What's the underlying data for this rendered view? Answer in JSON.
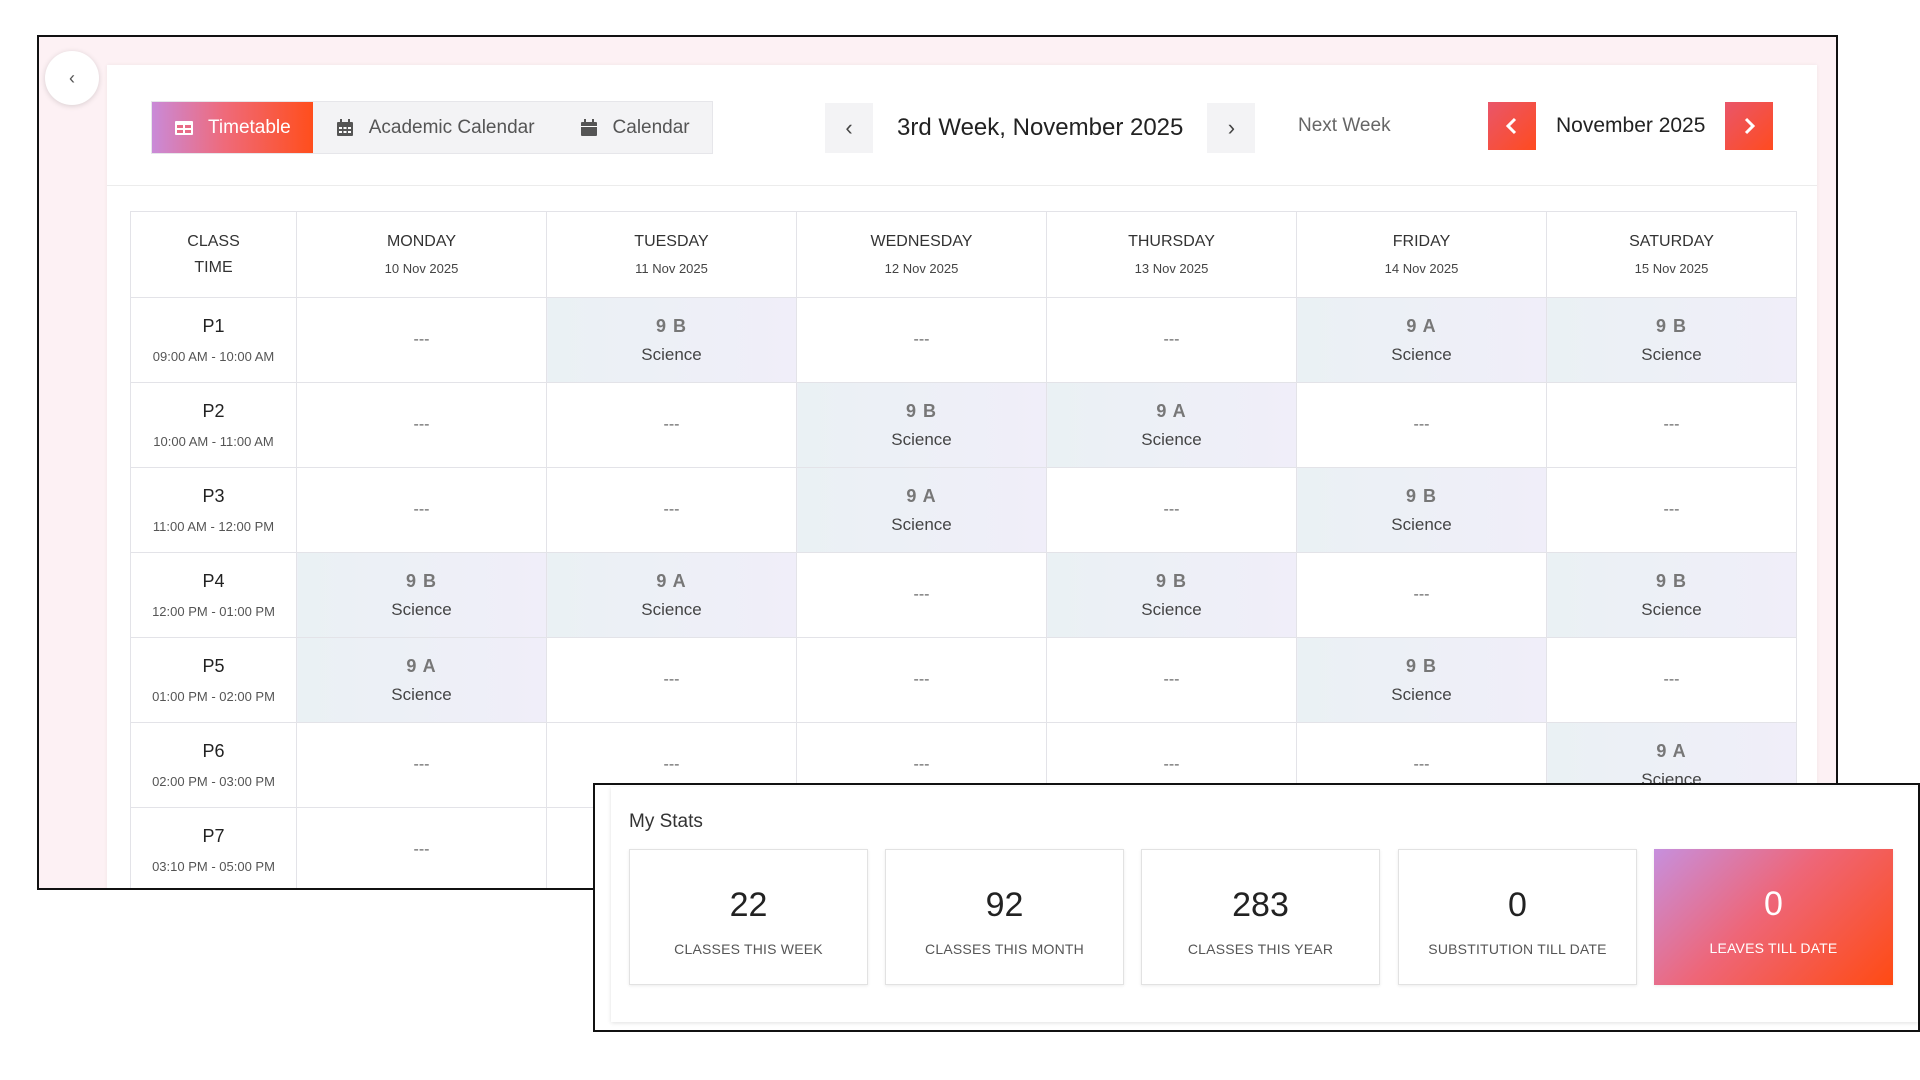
{
  "tabs": [
    {
      "label": "Timetable",
      "icon": "table-icon"
    },
    {
      "label": "Academic Calendar",
      "icon": "calendar-icon"
    },
    {
      "label": "Calendar",
      "icon": "calendar-icon"
    }
  ],
  "week_nav": {
    "label": "3rd Week, November 2025",
    "prev": "‹",
    "next": "›"
  },
  "next_week_label": "Next Week",
  "month_nav": {
    "label": "November 2025"
  },
  "table": {
    "time_header": [
      "CLASS",
      "TIME"
    ],
    "days": [
      {
        "name": "MONDAY",
        "date": "10 Nov 2025"
      },
      {
        "name": "TUESDAY",
        "date": "11 Nov 2025"
      },
      {
        "name": "WEDNESDAY",
        "date": "12 Nov 2025"
      },
      {
        "name": "THURSDAY",
        "date": "13 Nov 2025"
      },
      {
        "name": "FRIDAY",
        "date": "14 Nov 2025"
      },
      {
        "name": "SATURDAY",
        "date": "15 Nov 2025"
      }
    ],
    "empty_marker": "---",
    "periods": [
      {
        "name": "P1",
        "time": "09:00 AM - 10:00 AM",
        "cells": [
          null,
          {
            "cls": "9 B",
            "subject": "Science"
          },
          null,
          null,
          {
            "cls": "9 A",
            "subject": "Science"
          },
          {
            "cls": "9 B",
            "subject": "Science"
          }
        ]
      },
      {
        "name": "P2",
        "time": "10:00 AM - 11:00 AM",
        "cells": [
          null,
          null,
          {
            "cls": "9 B",
            "subject": "Science"
          },
          {
            "cls": "9 A",
            "subject": "Science"
          },
          null,
          null
        ]
      },
      {
        "name": "P3",
        "time": "11:00 AM - 12:00 PM",
        "cells": [
          null,
          null,
          {
            "cls": "9 A",
            "subject": "Science"
          },
          null,
          {
            "cls": "9 B",
            "subject": "Science"
          },
          null
        ]
      },
      {
        "name": "P4",
        "time": "12:00 PM - 01:00 PM",
        "cells": [
          {
            "cls": "9 B",
            "subject": "Science"
          },
          {
            "cls": "9 A",
            "subject": "Science"
          },
          null,
          {
            "cls": "9 B",
            "subject": "Science"
          },
          null,
          {
            "cls": "9 B",
            "subject": "Science"
          }
        ]
      },
      {
        "name": "P5",
        "time": "01:00 PM - 02:00 PM",
        "cells": [
          {
            "cls": "9 A",
            "subject": "Science"
          },
          null,
          null,
          null,
          {
            "cls": "9 B",
            "subject": "Science"
          },
          null
        ]
      },
      {
        "name": "P6",
        "time": "02:00 PM - 03:00 PM",
        "cells": [
          null,
          null,
          null,
          null,
          null,
          {
            "cls": "9 A",
            "subject": "Science"
          }
        ]
      },
      {
        "name": "P7",
        "time": "03:10 PM - 05:00 PM",
        "cells": [
          null,
          null,
          null,
          null,
          null,
          null
        ]
      }
    ]
  },
  "stats": {
    "title": "My Stats",
    "items": [
      {
        "value": "22",
        "label": "CLASSES THIS WEEK",
        "highlight": false
      },
      {
        "value": "92",
        "label": "CLASSES THIS MONTH",
        "highlight": false
      },
      {
        "value": "283",
        "label": "CLASSES THIS YEAR",
        "highlight": false
      },
      {
        "value": "0",
        "label": "SUBSTITUTION TILL DATE",
        "highlight": false
      },
      {
        "value": "0",
        "label": "LEAVES TILL DATE",
        "highlight": true
      }
    ]
  },
  "colors": {
    "accent_start": "#c98ad8",
    "accent_end": "#ff4e1c",
    "cell_fill": "#eef0f7"
  }
}
